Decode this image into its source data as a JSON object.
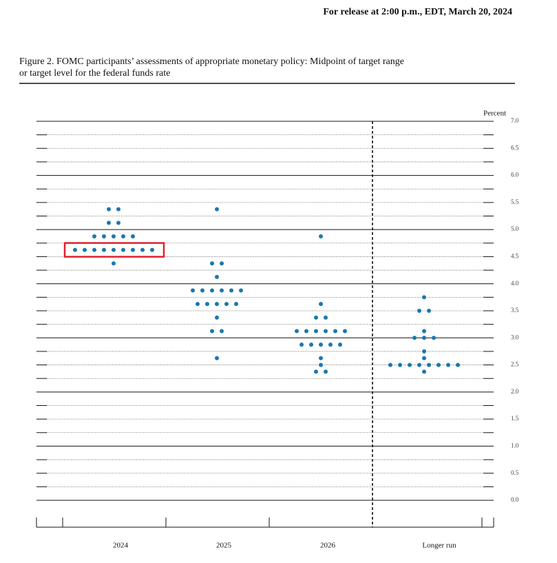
{
  "header": "For release at 2:00 p.m., EDT, March 20, 2024",
  "chart_data": {
    "type": "dot",
    "title": [
      "Figure 2.  FOMC participants’ assessments of appropriate monetary policy:  Midpoint of target range",
      "or target level for the federal funds rate"
    ],
    "y_label": "Percent",
    "categories": [
      "2024",
      "2025",
      "2026",
      "Longer run"
    ],
    "color": "#1a78ad",
    "dots": [
      [
        5.375,
        5.375,
        5.125,
        5.125,
        4.875,
        4.875,
        4.875,
        4.875,
        4.875,
        4.625,
        4.625,
        4.625,
        4.625,
        4.625,
        4.625,
        4.625,
        4.625,
        4.625,
        4.375
      ],
      [
        5.375,
        4.375,
        4.375,
        4.125,
        3.875,
        3.875,
        3.875,
        3.875,
        3.875,
        3.875,
        3.625,
        3.625,
        3.625,
        3.625,
        3.625,
        3.375,
        3.125,
        3.125,
        2.625
      ],
      [
        4.875,
        3.625,
        3.375,
        3.375,
        3.125,
        3.125,
        3.125,
        3.125,
        3.125,
        3.125,
        2.875,
        2.875,
        2.875,
        2.875,
        2.875,
        2.625,
        2.5,
        2.375,
        2.375
      ],
      [
        3.75,
        3.5,
        3.5,
        3.125,
        3.0,
        3.0,
        3.0,
        2.75,
        2.625,
        2.5,
        2.5,
        2.5,
        2.5,
        2.5,
        2.5,
        2.5,
        2.5,
        2.375
      ]
    ],
    "ylim": [
      0,
      7
    ],
    "yticks": [
      {
        "value": 0,
        "label": "0.0"
      },
      0.5,
      {
        "value": 1,
        "label": "1.0"
      },
      1.5,
      {
        "value": 2,
        "label": "2.0"
      },
      2.5,
      {
        "value": 3,
        "label": "3.0"
      },
      3.5,
      {
        "value": 4,
        "label": "4.0"
      },
      4.5,
      {
        "value": 5,
        "label": "5.0"
      },
      5.5,
      {
        "value": 6,
        "label": "6.0"
      },
      6.5,
      {
        "value": 7,
        "label": "7.0"
      }
    ],
    "yminor": [
      0.25,
      0.75,
      1.25,
      1.75,
      2.25,
      2.75,
      3.25,
      3.75,
      4.25,
      4.75,
      5.25,
      5.75,
      6.25,
      6.75
    ],
    "grid": true
  }
}
